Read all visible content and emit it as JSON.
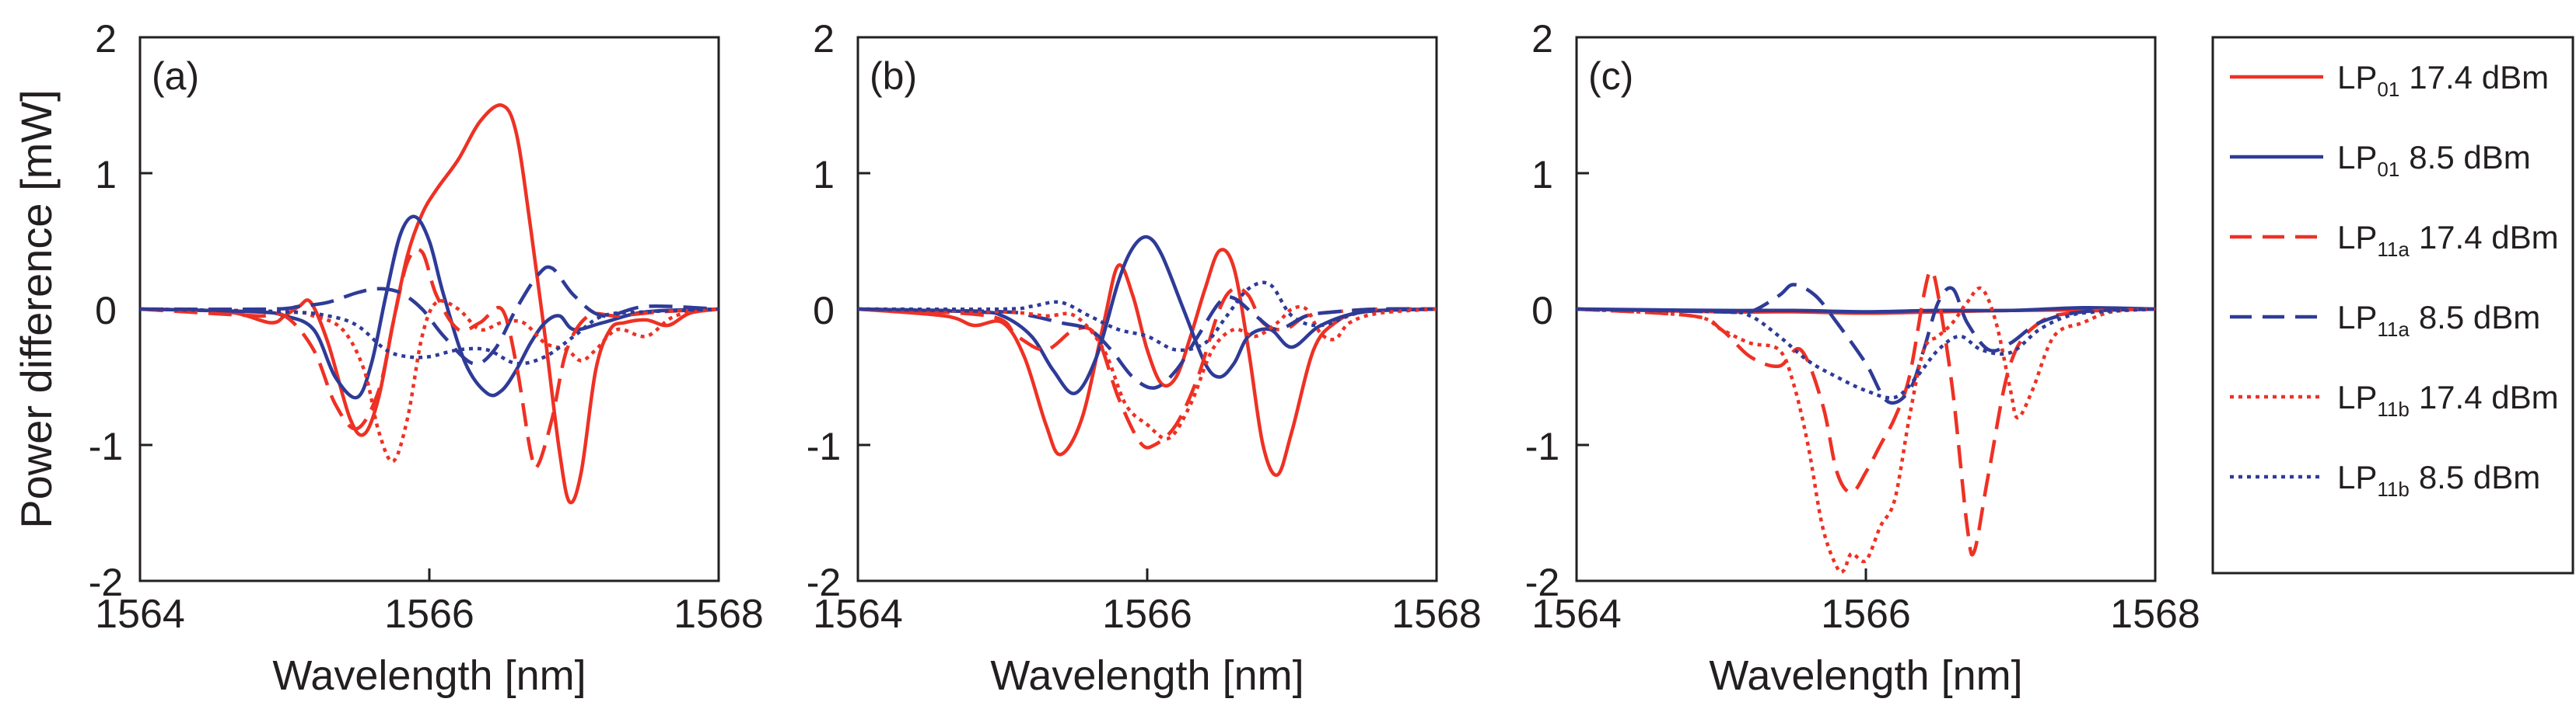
{
  "figure": {
    "ylabel": "Power difference [mW]",
    "xlabel": "Wavelength [nm]"
  },
  "colors": {
    "red": "#ee3124",
    "blue": "#2e3b97",
    "frame": "#231f20"
  },
  "legend": {
    "items": [
      {
        "base": "LP",
        "sub": "01",
        "label": "17.4 dBm",
        "color": "red",
        "dash": "solid"
      },
      {
        "base": "LP",
        "sub": "01",
        "label": "8.5 dBm",
        "color": "blue",
        "dash": "solid"
      },
      {
        "base": "LP",
        "sub": "11a",
        "label": "17.4 dBm",
        "color": "red",
        "dash": "dashed"
      },
      {
        "base": "LP",
        "sub": "11a",
        "label": "8.5 dBm",
        "color": "blue",
        "dash": "dashed"
      },
      {
        "base": "LP",
        "sub": "11b",
        "label": "17.4 dBm",
        "color": "red",
        "dash": "dotted"
      },
      {
        "base": "LP",
        "sub": "11b",
        "label": "8.5 dBm",
        "color": "blue",
        "dash": "dotted"
      }
    ]
  },
  "chart_data": [
    {
      "type": "line",
      "panel": "(a)",
      "xlabel": "Wavelength [nm]",
      "ylabel": "Power difference [mW]",
      "xlim": [
        1564,
        1568
      ],
      "ylim": [
        -2,
        2
      ],
      "xticks": [
        "1564",
        "1566",
        "1568"
      ],
      "yticks": [
        "2",
        "1",
        "0",
        "-1",
        "-2"
      ],
      "series": [
        {
          "name": "LP01 17.4 dBm",
          "color": "red",
          "dash": "solid",
          "x": [
            1564.0,
            1564.6,
            1564.9,
            1565.0,
            1565.1,
            1565.18,
            1565.3,
            1565.45,
            1565.55,
            1565.65,
            1565.75,
            1565.85,
            1565.95,
            1566.05,
            1566.2,
            1566.35,
            1566.5,
            1566.6,
            1566.7,
            1566.8,
            1566.9,
            1566.97,
            1567.05,
            1567.15,
            1567.25,
            1567.35,
            1567.5,
            1567.65,
            1567.8,
            1568.0
          ],
          "y": [
            0,
            -0.02,
            -0.1,
            -0.05,
            0.02,
            0.05,
            -0.25,
            -0.8,
            -0.92,
            -0.65,
            -0.1,
            0.4,
            0.7,
            0.88,
            1.1,
            1.38,
            1.5,
            1.3,
            0.6,
            -0.2,
            -1.05,
            -1.42,
            -1.2,
            -0.45,
            -0.15,
            -0.1,
            -0.08,
            -0.12,
            -0.03,
            0
          ]
        },
        {
          "name": "LP01 8.5 dBm",
          "color": "blue",
          "dash": "solid",
          "x": [
            1564.0,
            1564.8,
            1565.0,
            1565.2,
            1565.35,
            1565.5,
            1565.6,
            1565.7,
            1565.8,
            1565.9,
            1566.0,
            1566.1,
            1566.25,
            1566.4,
            1566.5,
            1566.6,
            1566.7,
            1566.8,
            1566.9,
            1567.0,
            1567.2,
            1567.5,
            1568.0
          ],
          "y": [
            0,
            -0.02,
            -0.05,
            -0.15,
            -0.5,
            -0.65,
            -0.4,
            0.1,
            0.55,
            0.68,
            0.5,
            0.1,
            -0.4,
            -0.62,
            -0.6,
            -0.45,
            -0.25,
            -0.1,
            -0.05,
            -0.15,
            -0.1,
            -0.02,
            0
          ]
        },
        {
          "name": "LP11a 17.4 dBm",
          "color": "red",
          "dash": "dashed",
          "x": [
            1564.0,
            1564.8,
            1565.0,
            1565.2,
            1565.35,
            1565.5,
            1565.65,
            1565.75,
            1565.85,
            1565.95,
            1566.05,
            1566.2,
            1566.35,
            1566.5,
            1566.6,
            1566.7,
            1566.75,
            1566.85,
            1566.95,
            1567.1,
            1567.3,
            1567.6,
            1568.0
          ],
          "y": [
            0,
            -0.05,
            -0.05,
            -0.3,
            -0.7,
            -0.88,
            -0.6,
            -0.1,
            0.35,
            0.42,
            0.1,
            -0.15,
            -0.1,
            0.0,
            -0.4,
            -1.05,
            -1.15,
            -0.8,
            -0.3,
            -0.05,
            -0.05,
            -0.02,
            0
          ]
        },
        {
          "name": "LP11a 8.5 dBm",
          "color": "blue",
          "dash": "dashed",
          "x": [
            1564.0,
            1564.9,
            1565.1,
            1565.3,
            1565.5,
            1565.65,
            1565.8,
            1565.95,
            1566.1,
            1566.3,
            1566.45,
            1566.6,
            1566.75,
            1566.85,
            1567.0,
            1567.2,
            1567.5,
            1568.0
          ],
          "y": [
            0,
            0,
            0.02,
            0.05,
            0.12,
            0.15,
            0.12,
            0.0,
            -0.2,
            -0.4,
            -0.3,
            0.0,
            0.25,
            0.3,
            0.1,
            -0.05,
            0.02,
            0
          ]
        },
        {
          "name": "LP11b 17.4 dBm",
          "color": "red",
          "dash": "dotted",
          "x": [
            1564.0,
            1565.0,
            1565.2,
            1565.4,
            1565.55,
            1565.65,
            1565.75,
            1565.85,
            1565.95,
            1566.05,
            1566.2,
            1566.35,
            1566.5,
            1566.65,
            1566.8,
            1566.95,
            1567.05,
            1567.15,
            1567.3,
            1567.5,
            1567.7,
            1568.0
          ],
          "y": [
            0,
            -0.02,
            -0.05,
            -0.15,
            -0.45,
            -0.9,
            -1.12,
            -0.8,
            -0.2,
            0.05,
            0.0,
            -0.15,
            -0.1,
            -0.1,
            -0.25,
            -0.3,
            -0.38,
            -0.3,
            -0.15,
            -0.2,
            -0.05,
            0
          ]
        },
        {
          "name": "LP11b 8.5 dBm",
          "color": "blue",
          "dash": "dotted",
          "x": [
            1564.0,
            1565.0,
            1565.3,
            1565.5,
            1565.7,
            1565.85,
            1566.0,
            1566.2,
            1566.4,
            1566.6,
            1566.8,
            1567.0,
            1567.2,
            1567.5,
            1568.0
          ],
          "y": [
            0,
            -0.02,
            -0.05,
            -0.12,
            -0.3,
            -0.35,
            -0.35,
            -0.3,
            -0.3,
            -0.4,
            -0.35,
            -0.2,
            -0.05,
            -0.02,
            0
          ]
        }
      ]
    },
    {
      "type": "line",
      "panel": "(b)",
      "xlabel": "Wavelength [nm]",
      "ylabel": "",
      "xlim": [
        1564,
        1568
      ],
      "ylim": [
        -2,
        2
      ],
      "xticks": [
        "1564",
        "1566",
        "1568"
      ],
      "yticks": [
        "2",
        "1",
        "0",
        "-1",
        "-2"
      ],
      "series": [
        {
          "name": "LP01 17.4 dBm",
          "color": "red",
          "dash": "solid",
          "x": [
            1564.0,
            1564.6,
            1564.8,
            1565.0,
            1565.15,
            1565.3,
            1565.4,
            1565.55,
            1565.7,
            1565.8,
            1565.9,
            1566.0,
            1566.1,
            1566.2,
            1566.3,
            1566.4,
            1566.5,
            1566.6,
            1566.7,
            1566.8,
            1566.9,
            1567.0,
            1567.15,
            1567.3,
            1567.5,
            1568.0
          ],
          "y": [
            0,
            -0.05,
            -0.12,
            -0.1,
            -0.35,
            -0.85,
            -1.07,
            -0.8,
            -0.1,
            0.32,
            0.1,
            -0.3,
            -0.55,
            -0.5,
            -0.2,
            0.15,
            0.43,
            0.3,
            -0.3,
            -1.0,
            -1.22,
            -0.9,
            -0.3,
            -0.1,
            -0.02,
            0
          ]
        },
        {
          "name": "LP01 8.5 dBm",
          "color": "blue",
          "dash": "solid",
          "x": [
            1564.0,
            1564.8,
            1565.0,
            1565.2,
            1565.35,
            1565.5,
            1565.65,
            1565.8,
            1565.9,
            1566.0,
            1566.1,
            1566.25,
            1566.4,
            1566.5,
            1566.6,
            1566.7,
            1566.85,
            1567.0,
            1567.2,
            1567.5,
            1568.0
          ],
          "y": [
            0,
            -0.02,
            -0.05,
            -0.2,
            -0.45,
            -0.62,
            -0.35,
            0.2,
            0.45,
            0.53,
            0.4,
            0.0,
            -0.4,
            -0.5,
            -0.4,
            -0.2,
            -0.15,
            -0.28,
            -0.12,
            -0.02,
            0
          ]
        },
        {
          "name": "LP11a 17.4 dBm",
          "color": "red",
          "dash": "dashed",
          "x": [
            1564.0,
            1564.9,
            1565.1,
            1565.3,
            1565.5,
            1565.65,
            1565.8,
            1565.95,
            1566.05,
            1566.2,
            1566.35,
            1566.5,
            1566.6,
            1566.7,
            1566.8,
            1566.95,
            1567.1,
            1567.3,
            1567.6,
            1568.0
          ],
          "y": [
            0,
            -0.05,
            -0.2,
            -0.3,
            -0.15,
            -0.2,
            -0.65,
            -0.98,
            -1.0,
            -0.85,
            -0.5,
            0.0,
            0.15,
            0.1,
            -0.1,
            -0.15,
            -0.05,
            -0.02,
            0,
            0
          ]
        },
        {
          "name": "LP11a 8.5 dBm",
          "color": "blue",
          "dash": "dashed",
          "x": [
            1564.0,
            1565.0,
            1565.2,
            1565.4,
            1565.6,
            1565.75,
            1565.9,
            1566.05,
            1566.2,
            1566.35,
            1566.5,
            1566.6,
            1566.75,
            1566.9,
            1567.1,
            1567.3,
            1567.6,
            1568.0
          ],
          "y": [
            0,
            -0.02,
            -0.05,
            -0.1,
            -0.15,
            -0.3,
            -0.5,
            -0.58,
            -0.45,
            -0.2,
            0.05,
            0.08,
            -0.05,
            -0.15,
            -0.05,
            -0.02,
            0,
            0
          ]
        },
        {
          "name": "LP11b 17.4 dBm",
          "color": "red",
          "dash": "dotted",
          "x": [
            1564.0,
            1565.0,
            1565.3,
            1565.5,
            1565.7,
            1565.85,
            1566.0,
            1566.15,
            1566.3,
            1566.45,
            1566.6,
            1566.75,
            1566.9,
            1567.0,
            1567.1,
            1567.2,
            1567.3,
            1567.4,
            1567.6,
            1568.0
          ],
          "y": [
            0,
            -0.02,
            -0.05,
            -0.05,
            -0.3,
            -0.7,
            -0.85,
            -0.95,
            -0.7,
            -0.3,
            -0.15,
            -0.2,
            -0.1,
            0.0,
            0.0,
            -0.18,
            -0.22,
            -0.1,
            -0.03,
            0
          ]
        },
        {
          "name": "LP11b 8.5 dBm",
          "color": "blue",
          "dash": "dotted",
          "x": [
            1564.0,
            1565.0,
            1565.2,
            1565.4,
            1565.6,
            1565.8,
            1566.0,
            1566.2,
            1566.4,
            1566.55,
            1566.7,
            1566.85,
            1567.0,
            1567.2,
            1567.5,
            1568.0
          ],
          "y": [
            0,
            0,
            0.02,
            0.05,
            -0.05,
            -0.15,
            -0.2,
            -0.3,
            -0.25,
            -0.05,
            0.15,
            0.18,
            -0.05,
            -0.12,
            -0.02,
            0
          ]
        }
      ]
    },
    {
      "type": "line",
      "panel": "(c)",
      "xlabel": "Wavelength [nm]",
      "ylabel": "",
      "xlim": [
        1564,
        1568
      ],
      "ylim": [
        -2,
        2
      ],
      "xticks": [
        "1564",
        "1566",
        "1568"
      ],
      "yticks": [
        "2",
        "1",
        "0",
        "-1",
        "-2"
      ],
      "series": [
        {
          "name": "LP01 17.4 dBm",
          "color": "red",
          "dash": "solid",
          "x": [
            1564.0,
            1565.0,
            1565.5,
            1566.0,
            1566.5,
            1567.0,
            1568.0
          ],
          "y": [
            0,
            -0.02,
            -0.02,
            -0.03,
            -0.02,
            -0.01,
            0
          ]
        },
        {
          "name": "LP01 8.5 dBm",
          "color": "blue",
          "dash": "solid",
          "x": [
            1564.0,
            1565.0,
            1565.5,
            1566.0,
            1566.5,
            1567.0,
            1567.5,
            1568.0
          ],
          "y": [
            0,
            -0.01,
            -0.01,
            -0.02,
            -0.01,
            -0.01,
            0.01,
            0
          ]
        },
        {
          "name": "LP11a 17.4 dBm",
          "color": "red",
          "dash": "dashed",
          "x": [
            1564.0,
            1564.8,
            1565.0,
            1565.2,
            1565.4,
            1565.55,
            1565.7,
            1565.8,
            1565.9,
            1566.0,
            1566.1,
            1566.2,
            1566.3,
            1566.4,
            1566.45,
            1566.5,
            1566.6,
            1566.7,
            1566.75,
            1566.85,
            1567.0,
            1567.2,
            1567.5,
            1568.0
          ],
          "y": [
            0,
            -0.05,
            -0.15,
            -0.35,
            -0.42,
            -0.3,
            -0.7,
            -1.2,
            -1.35,
            -1.2,
            -1.0,
            -0.8,
            -0.5,
            0.1,
            0.28,
            0.1,
            -0.6,
            -1.6,
            -1.78,
            -1.2,
            -0.4,
            -0.1,
            -0.02,
            0
          ]
        },
        {
          "name": "LP11a 8.5 dBm",
          "color": "blue",
          "dash": "dashed",
          "x": [
            1564.0,
            1565.0,
            1565.2,
            1565.4,
            1565.5,
            1565.65,
            1565.8,
            1566.0,
            1566.15,
            1566.3,
            1566.4,
            1566.5,
            1566.6,
            1566.7,
            1566.85,
            1567.0,
            1567.2,
            1567.5,
            1568.0
          ],
          "y": [
            0,
            -0.02,
            -0.02,
            0.1,
            0.18,
            0.1,
            -0.1,
            -0.4,
            -0.68,
            -0.6,
            -0.3,
            0.05,
            0.15,
            -0.1,
            -0.3,
            -0.25,
            -0.1,
            -0.02,
            0
          ]
        },
        {
          "name": "LP11b 17.4 dBm",
          "color": "red",
          "dash": "dotted",
          "x": [
            1564.0,
            1564.8,
            1565.0,
            1565.2,
            1565.4,
            1565.5,
            1565.6,
            1565.7,
            1565.8,
            1565.85,
            1565.9,
            1566.0,
            1566.1,
            1566.2,
            1566.3,
            1566.4,
            1566.5,
            1566.6,
            1566.7,
            1566.8,
            1566.9,
            1567.0,
            1567.05,
            1567.15,
            1567.3,
            1567.5,
            1567.7,
            1568.0
          ],
          "y": [
            0,
            -0.05,
            -0.15,
            -0.25,
            -0.3,
            -0.55,
            -1.0,
            -1.6,
            -1.9,
            -1.92,
            -1.8,
            -1.85,
            -1.6,
            -1.4,
            -0.8,
            -0.3,
            -0.2,
            -0.1,
            0.05,
            0.15,
            -0.1,
            -0.6,
            -0.8,
            -0.6,
            -0.2,
            -0.1,
            -0.02,
            0
          ]
        },
        {
          "name": "LP11b 8.5 dBm",
          "color": "blue",
          "dash": "dotted",
          "x": [
            1564.0,
            1565.0,
            1565.2,
            1565.4,
            1565.6,
            1565.8,
            1566.0,
            1566.2,
            1566.35,
            1566.5,
            1566.65,
            1566.8,
            1567.0,
            1567.2,
            1567.4,
            1567.6,
            1568.0
          ],
          "y": [
            0,
            -0.02,
            -0.05,
            -0.2,
            -0.38,
            -0.5,
            -0.6,
            -0.65,
            -0.5,
            -0.3,
            -0.2,
            -0.3,
            -0.32,
            -0.15,
            -0.05,
            -0.02,
            0
          ]
        }
      ]
    }
  ]
}
